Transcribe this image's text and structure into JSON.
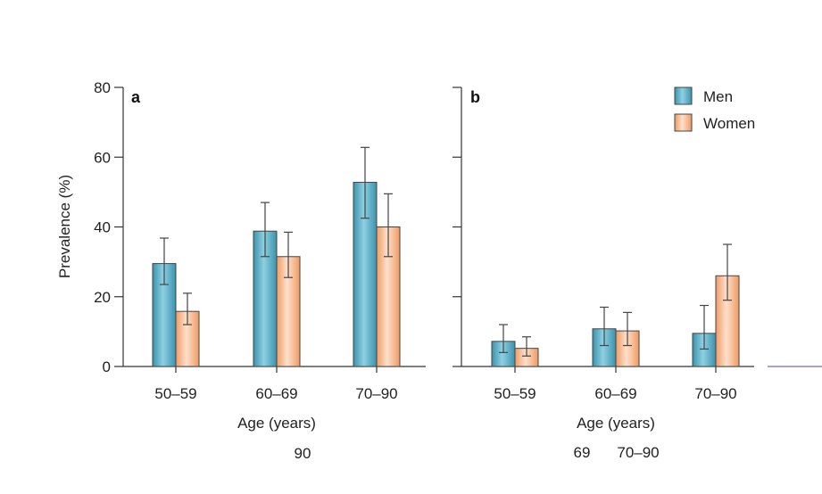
{
  "colors": {
    "men": "#3a93ad",
    "men_light": "#8fd0e2",
    "women": "#f09a62",
    "women_light": "#fde0cc",
    "axis": "#333333",
    "stroke": "#444444"
  },
  "chart_data": [
    {
      "type": "bar",
      "panel_label": "a",
      "categories": [
        "50–59",
        "60–69",
        "70–90"
      ],
      "series": [
        {
          "name": "Men",
          "values": [
            29.5,
            38.8,
            52.8
          ],
          "error": [
            [
              23.5,
              36.8
            ],
            [
              31.5,
              47.0
            ],
            [
              42.5,
              62.8
            ]
          ]
        },
        {
          "name": "Women",
          "values": [
            15.8,
            31.5,
            40.0
          ],
          "error": [
            [
              12.0,
              21.0
            ],
            [
              25.5,
              38.5
            ],
            [
              31.5,
              49.5
            ]
          ]
        }
      ],
      "xlabel": "Age (years)",
      "ylabel": "Prevalence (%)",
      "ylim": [
        0,
        80
      ],
      "yticks": [
        0,
        20,
        40,
        60,
        80
      ],
      "grid": false
    },
    {
      "type": "bar",
      "panel_label": "b",
      "categories": [
        "50–59",
        "60–69",
        "70–90"
      ],
      "series": [
        {
          "name": "Men",
          "values": [
            7.2,
            10.8,
            9.5
          ],
          "error": [
            [
              4.0,
              12.0
            ],
            [
              6.0,
              17.0
            ],
            [
              5.0,
              17.5
            ]
          ]
        },
        {
          "name": "Women",
          "values": [
            5.2,
            10.2,
            26.0
          ],
          "error": [
            [
              3.0,
              8.5
            ],
            [
              6.0,
              15.5
            ],
            [
              19.0,
              35.0
            ]
          ]
        }
      ],
      "xlabel": "Age (years)",
      "ylim": [
        0,
        80
      ],
      "yticks": [
        0,
        20,
        40,
        60,
        80
      ],
      "grid": false,
      "legend": {
        "placement": "top-right",
        "entries": [
          "Men",
          "Women"
        ]
      }
    }
  ],
  "stray_labels": {
    "under_panel_a": "90",
    "under_panel_b_1": "69",
    "under_panel_b_2": "70–90"
  }
}
